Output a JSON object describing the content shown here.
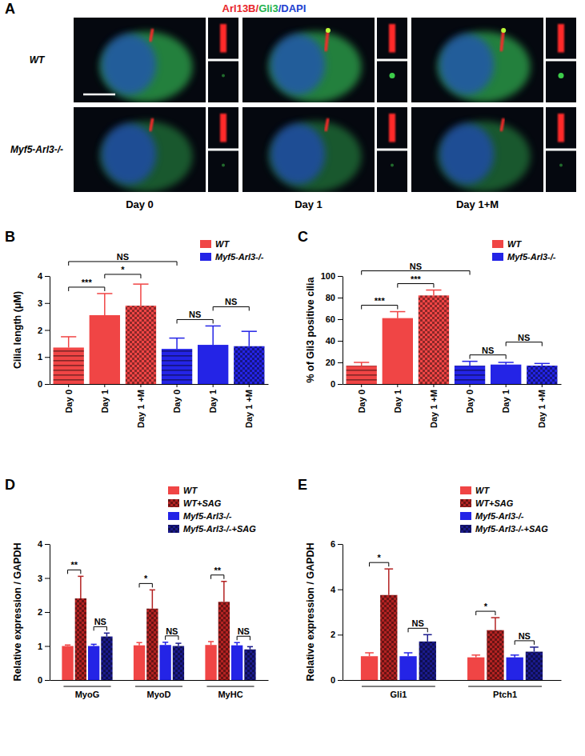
{
  "image_panel": {
    "panel_label": "A",
    "title": "Arl13B/Gli3/DAPI",
    "rows": [
      "WT",
      "Myf5-Arl3-/-"
    ],
    "columns": [
      "Day 0",
      "Day 1",
      "Day 1+M"
    ]
  },
  "chart_data": [
    {
      "type": "bar",
      "panel_label": "B",
      "y_label": "Cilia length (μM)",
      "categories": [
        "Day 0",
        "Day 1",
        "Day 1 +M",
        "Day 0",
        "Day 1",
        "Day 1 +M"
      ],
      "series": [
        {
          "name": "WT",
          "color": "#f04545",
          "values": [
            1.35,
            2.55,
            2.9,
            null,
            null,
            null
          ],
          "errors": [
            0.4,
            0.8,
            0.8,
            null,
            null,
            null
          ]
        },
        {
          "name": "Myf5-Arl3-/-",
          "color": "#2424e6",
          "values": [
            null,
            null,
            null,
            1.3,
            1.45,
            1.4
          ],
          "errors": [
            null,
            null,
            null,
            0.4,
            0.7,
            0.55
          ]
        }
      ],
      "ylim": [
        0,
        4
      ],
      "yticks": [
        0,
        1,
        2,
        3,
        4
      ],
      "legend": "top-right",
      "annotations": [
        {
          "text": "***",
          "from": 0,
          "to": 1
        },
        {
          "text": "*",
          "from": 1,
          "to": 2
        },
        {
          "text": "NS",
          "from": 3,
          "to": 4
        },
        {
          "text": "NS",
          "from": 4,
          "to": 5
        },
        {
          "text": "NS",
          "from": 0,
          "to": 3
        }
      ]
    },
    {
      "type": "bar",
      "panel_label": "C",
      "y_label": "% of Gli3 positive cilia",
      "categories": [
        "Day 0",
        "Day 1",
        "Day 1 +M",
        "Day 0",
        "Day 1",
        "Day 1 +M"
      ],
      "series": [
        {
          "name": "WT",
          "color": "#f04545",
          "values": [
            17,
            61,
            82,
            null,
            null,
            null
          ],
          "errors": [
            3,
            6,
            5,
            null,
            null,
            null
          ]
        },
        {
          "name": "Myf5-Arl3-/-",
          "color": "#2424e6",
          "values": [
            null,
            null,
            null,
            17,
            18,
            17
          ],
          "errors": [
            null,
            null,
            null,
            4,
            2,
            2
          ]
        }
      ],
      "ylim": [
        0,
        100
      ],
      "yticks": [
        0,
        20,
        40,
        60,
        80,
        100
      ],
      "legend": "top-right",
      "annotations": [
        {
          "text": "***",
          "from": 0,
          "to": 1
        },
        {
          "text": "***",
          "from": 1,
          "to": 2
        },
        {
          "text": "NS",
          "from": 3,
          "to": 4
        },
        {
          "text": "NS",
          "from": 4,
          "to": 5
        },
        {
          "text": "NS",
          "from": 0,
          "to": 3
        }
      ]
    },
    {
      "type": "bar",
      "panel_label": "D",
      "y_label": "Relative expression / GAPDH",
      "categories": [
        "MyoG",
        "MyoD",
        "MyHC"
      ],
      "series": [
        {
          "name": "WT",
          "color": "#f04545",
          "values": [
            1.0,
            1.02,
            1.03
          ],
          "errors": [
            0.03,
            0.08,
            0.1
          ]
        },
        {
          "name": "WT+SAG",
          "color": "#b32222",
          "values": [
            2.4,
            2.1,
            2.3
          ],
          "errors": [
            0.65,
            0.55,
            0.6
          ]
        },
        {
          "name": "Myf5-Arl3-/-",
          "color": "#2424e6",
          "values": [
            1.0,
            1.03,
            1.02
          ],
          "errors": [
            0.05,
            0.08,
            0.08
          ]
        },
        {
          "name": "Myf5-Arl3-/-+SAG",
          "color": "#1a1a8c",
          "values": [
            1.28,
            1.0,
            0.9
          ],
          "errors": [
            0.1,
            0.08,
            0.08
          ]
        }
      ],
      "ylim": [
        0,
        4
      ],
      "yticks": [
        0,
        1,
        2,
        3,
        4
      ],
      "legend": "top-right",
      "annotations": [
        {
          "text": "**",
          "category": 0,
          "from": 0,
          "to": 1
        },
        {
          "text": "NS",
          "category": 0,
          "from": 2,
          "to": 3
        },
        {
          "text": "*",
          "category": 1,
          "from": 0,
          "to": 1
        },
        {
          "text": "NS",
          "category": 1,
          "from": 2,
          "to": 3
        },
        {
          "text": "**",
          "category": 2,
          "from": 0,
          "to": 1
        },
        {
          "text": "NS",
          "category": 2,
          "from": 2,
          "to": 3
        }
      ]
    },
    {
      "type": "bar",
      "panel_label": "E",
      "y_label": "Relative expression / GAPDH",
      "categories": [
        "Gli1",
        "Ptch1"
      ],
      "series": [
        {
          "name": "WT",
          "color": "#f04545",
          "values": [
            1.05,
            1.0
          ],
          "errors": [
            0.15,
            0.1
          ]
        },
        {
          "name": "WT+SAG",
          "color": "#b32222",
          "values": [
            3.75,
            2.2
          ],
          "errors": [
            1.15,
            0.55
          ]
        },
        {
          "name": "Myf5-Arl3-/-",
          "color": "#2424e6",
          "values": [
            1.05,
            1.0
          ],
          "errors": [
            0.15,
            0.1
          ]
        },
        {
          "name": "Myf5-Arl3-/-+SAG",
          "color": "#1a1a8c",
          "values": [
            1.7,
            1.25
          ],
          "errors": [
            0.3,
            0.2
          ]
        }
      ],
      "ylim": [
        0,
        6
      ],
      "yticks": [
        0,
        2,
        4,
        6
      ],
      "legend": "top-right",
      "annotations": [
        {
          "text": "*",
          "category": 0,
          "from": 0,
          "to": 1
        },
        {
          "text": "NS",
          "category": 0,
          "from": 2,
          "to": 3
        },
        {
          "text": "*",
          "category": 1,
          "from": 0,
          "to": 1
        },
        {
          "text": "NS",
          "category": 1,
          "from": 2,
          "to": 3
        }
      ]
    }
  ]
}
